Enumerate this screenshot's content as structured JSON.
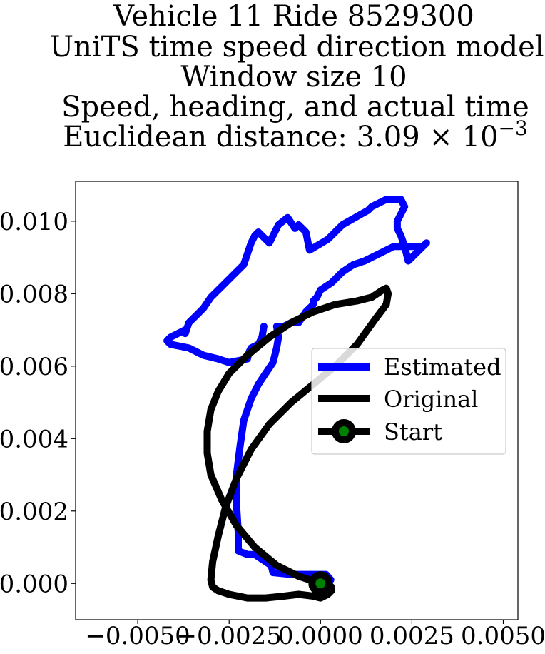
{
  "chart_data": {
    "type": "line",
    "title_lines": [
      "Vehicle 11 Ride 8529300",
      "UniTS time speed direction model",
      "Window size 10",
      "Speed, heading, and actual time"
    ],
    "title_last_prefix": "Euclidean distance: 3.09 × 10",
    "title_last_exponent": "−3",
    "xlim": [
      -0.0067,
      0.0054
    ],
    "ylim": [
      -0.001,
      0.0111
    ],
    "xticks": [
      -0.005,
      -0.0025,
      0.0,
      0.0025,
      0.005
    ],
    "xtick_labels": [
      "−0.0050",
      "−0.0025",
      "0.0000",
      "0.0025",
      "0.0050"
    ],
    "yticks": [
      0.0,
      0.002,
      0.004,
      0.006,
      0.008,
      0.01
    ],
    "ytick_labels": [
      "0.000",
      "0.002",
      "0.004",
      "0.006",
      "0.008",
      "0.010"
    ],
    "grid": false,
    "legend_position": "center-right",
    "series": [
      {
        "name": "Estimated",
        "color": "#0000ff",
        "x": [
          0.00028,
          0.00015,
          -0.0008,
          -0.0013,
          -0.00135,
          -0.0018,
          -0.002,
          -0.00225,
          -0.00225,
          -0.0023,
          -0.0023,
          -0.0022,
          -0.0021,
          -0.0019,
          -0.0017,
          -0.0015,
          -0.0013,
          -0.0012,
          -0.00115,
          -0.0012,
          -0.00115,
          -0.001,
          -0.0008,
          -0.0006,
          -0.0004,
          -0.0002,
          -0.0002,
          -0.0001,
          0.0,
          0.0003,
          0.0006,
          0.0009,
          0.0012,
          0.0016,
          0.002,
          0.0024,
          0.0028,
          0.0029,
          0.0024,
          0.0023,
          0.0022,
          0.0021,
          0.0021,
          0.0023,
          0.0022,
          0.0018,
          0.0014,
          0.0013,
          0.0006,
          0.0002,
          -0.0003,
          -0.0004,
          -0.0006,
          -0.0007,
          -0.0009,
          -0.00115,
          -0.0014,
          -0.0017,
          -0.0018,
          -0.0019,
          -0.0021,
          -0.0024,
          -0.0027,
          -0.003,
          -0.0032,
          -0.0034,
          -0.0036,
          -0.0037,
          -0.0037,
          -0.0041,
          -0.0042,
          -0.0041,
          -0.0036,
          -0.0032,
          -0.0028,
          -0.0025,
          -0.002,
          -0.00195,
          -0.0019,
          -0.0017,
          -0.0016,
          -0.00155
        ],
        "y": [
          0.0001,
          0.00025,
          0.00025,
          0.0003,
          0.0005,
          0.0008,
          0.0008,
          0.0009,
          0.0014,
          0.0022,
          0.003,
          0.0038,
          0.0045,
          0.0051,
          0.0055,
          0.0058,
          0.0061,
          0.0065,
          0.0068,
          0.0071,
          0.0071,
          0.0071,
          0.0072,
          0.0072,
          0.0075,
          0.0077,
          0.0078,
          0.0079,
          0.0081,
          0.0083,
          0.0086,
          0.0088,
          0.0089,
          0.0091,
          0.0093,
          0.0093,
          0.0093,
          0.0094,
          0.0089,
          0.0093,
          0.0096,
          0.0098,
          0.01,
          0.0104,
          0.0106,
          0.0106,
          0.0104,
          0.0103,
          0.0099,
          0.0095,
          0.0092,
          0.0097,
          0.0099,
          0.0098,
          0.0101,
          0.0099,
          0.0094,
          0.0097,
          0.0096,
          0.0094,
          0.0088,
          0.0085,
          0.0082,
          0.0079,
          0.0076,
          0.0074,
          0.0072,
          0.0069,
          0.007,
          0.0068,
          0.0067,
          0.0066,
          0.0065,
          0.0063,
          0.0062,
          0.0061,
          0.0062,
          0.0064,
          0.0065,
          0.0066,
          0.0068,
          0.0071
        ]
      },
      {
        "name": "Original",
        "color": "#000000",
        "x": [
          0.0,
          -0.0006,
          -0.0012,
          -0.0018,
          -0.0023,
          -0.0027,
          -0.003,
          -0.0031,
          -0.0031,
          -0.003,
          -0.0028,
          -0.0025,
          -0.002,
          -0.0014,
          -0.0008,
          -0.0002,
          0.0004,
          0.001,
          0.0014,
          0.0017,
          0.0018,
          0.00185,
          0.0018,
          0.0015,
          0.001,
          0.0004,
          -0.0002,
          -0.0008,
          -0.0014,
          -0.0019,
          -0.0023,
          -0.0026,
          -0.0028,
          -0.00295,
          -0.003,
          -0.00295,
          -0.0028,
          -0.0025,
          -0.002,
          -0.0015,
          -0.001,
          -0.0006,
          -0.0002,
          0.0,
          0.0002,
          0.0003,
          0.0003,
          0.0002,
          0.0
        ],
        "y": [
          0.0,
          0.0002,
          0.0005,
          0.001,
          0.0016,
          0.0023,
          0.003,
          0.0036,
          0.0042,
          0.0048,
          0.0053,
          0.0058,
          0.0063,
          0.0068,
          0.0072,
          0.0075,
          0.0077,
          0.0078,
          0.0079,
          0.0081,
          0.00815,
          0.008,
          0.0077,
          0.0073,
          0.0066,
          0.006,
          0.0055,
          0.005,
          0.0044,
          0.0037,
          0.0029,
          0.0021,
          0.0013,
          0.0006,
          0.0001,
          -0.0001,
          -0.0002,
          -0.0003,
          -0.0004,
          -0.0004,
          -0.00035,
          -0.0003,
          -0.00035,
          -0.0004,
          -0.0003,
          -0.0002,
          -0.0001,
          0.0,
          0.0
        ]
      }
    ],
    "start_point": {
      "name": "Start",
      "x": 0.0,
      "y": 0.0,
      "marker_fill": "#008000",
      "marker_edge": "#000000"
    }
  }
}
